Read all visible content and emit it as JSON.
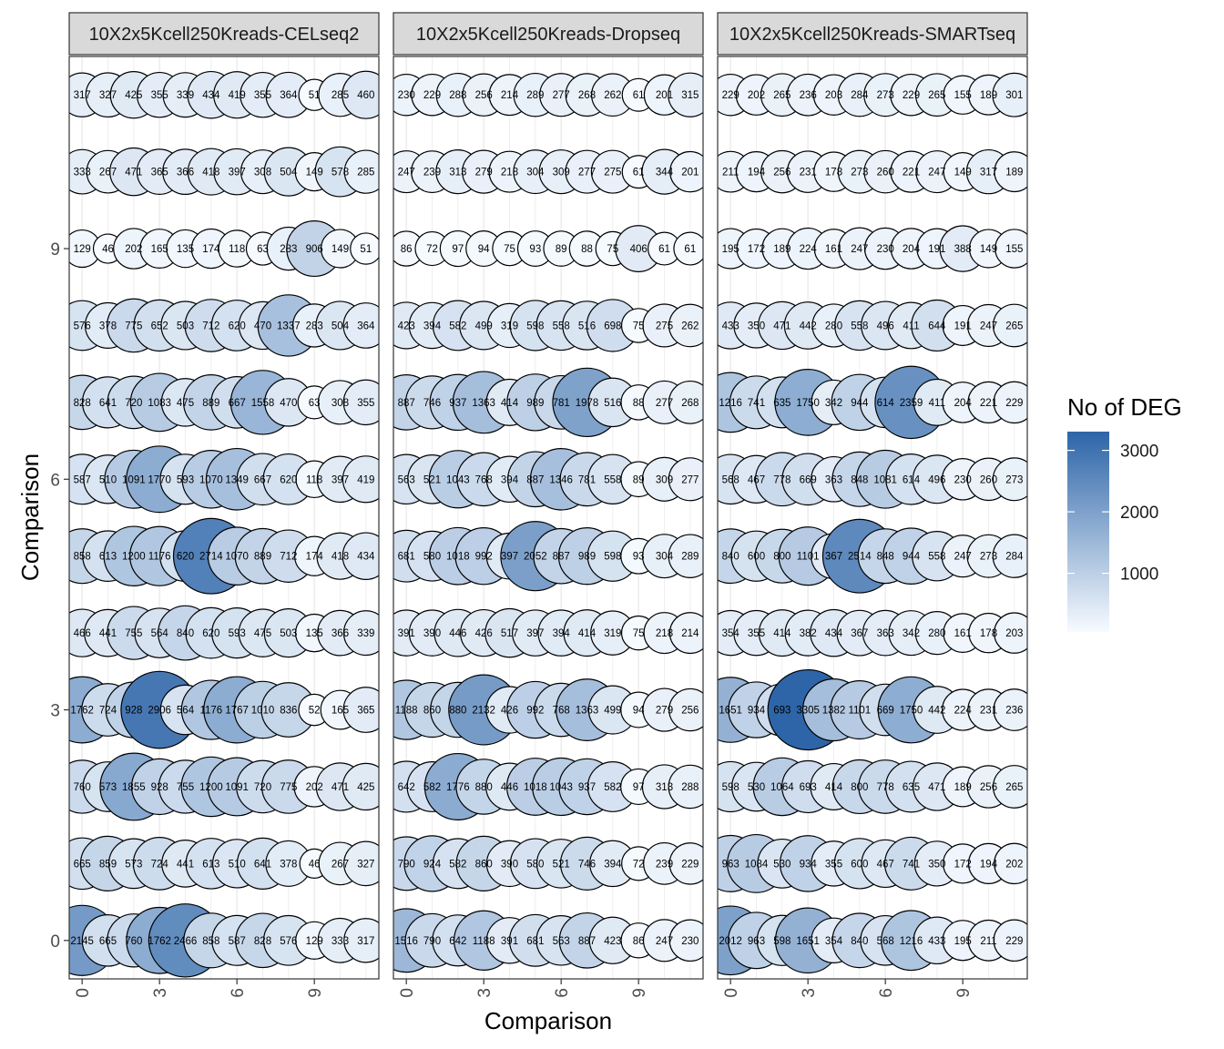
{
  "chart_data": {
    "type": "scatter",
    "subtype": "bubble",
    "xlabel": "Comparison",
    "ylabel": "Comparison",
    "x_ticks": [
      "0",
      "3",
      "6",
      "9"
    ],
    "y_ticks": [
      "0",
      "3",
      "6",
      "9"
    ],
    "x_categories": [
      0,
      1,
      2,
      3,
      4,
      5,
      6,
      7,
      8,
      9,
      10,
      11
    ],
    "y_categories": [
      0,
      1,
      2,
      3,
      4,
      5,
      6,
      7,
      8,
      9,
      10,
      11
    ],
    "xlim": [
      -0.5,
      11.5
    ],
    "ylim": [
      -0.5,
      11.5
    ],
    "grid": true,
    "legend": {
      "title": "No of DEG",
      "placement": "right",
      "ticks": [
        "1000",
        "2000",
        "3000"
      ],
      "tick_values": [
        1000,
        2000,
        3000
      ],
      "range": [
        46,
        3305
      ],
      "color_low": "#f7fbff",
      "color_high": "#2d65a8"
    },
    "panels": [
      {
        "name": "10X2x5Kcell250Kreads-CELseq2",
        "rows": [
          [
            "2145",
            "665",
            "760",
            "1762",
            "2466",
            "858",
            "587",
            "828",
            "576",
            "129",
            "333",
            "317"
          ],
          [
            "665",
            "859",
            "573",
            "724",
            "441",
            "613",
            "510",
            "641",
            "378",
            "46",
            "267",
            "327"
          ],
          [
            "760",
            "573",
            "1855",
            "928",
            "755",
            "1200",
            "1091",
            "720",
            "775",
            "202",
            "471",
            "425"
          ],
          [
            "1762",
            "724",
            "928",
            "2906",
            "564",
            "1176",
            "1767",
            "1010",
            "836",
            "52",
            "165",
            "365"
          ],
          [
            "466",
            "441",
            "755",
            "564",
            "840",
            "620",
            "593",
            "475",
            "503",
            "135",
            "366",
            "339"
          ],
          [
            "858",
            "613",
            "1200",
            "1176",
            "620",
            "2714",
            "1070",
            "889",
            "712",
            "174",
            "418",
            "434"
          ],
          [
            "587",
            "510",
            "1091",
            "1770",
            "593",
            "1070",
            "1349",
            "667",
            "620",
            "118",
            "397",
            "419"
          ],
          [
            "828",
            "641",
            "720",
            "1083",
            "475",
            "889",
            "667",
            "1558",
            "470",
            "63",
            "308",
            "355"
          ],
          [
            "576",
            "378",
            "775",
            "652",
            "503",
            "712",
            "620",
            "470",
            "1337",
            "283",
            "504",
            "364"
          ],
          [
            "129",
            "46",
            "202",
            "165",
            "135",
            "174",
            "118",
            "63",
            "283",
            "906",
            "149",
            "51"
          ],
          [
            "333",
            "267",
            "471",
            "365",
            "366",
            "418",
            "397",
            "308",
            "504",
            "149",
            "578",
            "285"
          ],
          [
            "317",
            "327",
            "425",
            "355",
            "339",
            "434",
            "419",
            "355",
            "364",
            "51",
            "285",
            "460"
          ]
        ]
      },
      {
        "name": "10X2x5Kcell250Kreads-Dropseq",
        "rows": [
          [
            "1516",
            "790",
            "642",
            "1188",
            "391",
            "681",
            "563",
            "887",
            "423",
            "86",
            "247",
            "230"
          ],
          [
            "790",
            "924",
            "582",
            "860",
            "390",
            "580",
            "521",
            "746",
            "394",
            "72",
            "239",
            "229"
          ],
          [
            "642",
            "582",
            "1776",
            "880",
            "446",
            "1018",
            "1043",
            "937",
            "582",
            "97",
            "313",
            "288"
          ],
          [
            "1188",
            "860",
            "880",
            "2132",
            "426",
            "992",
            "768",
            "1363",
            "499",
            "94",
            "279",
            "256"
          ],
          [
            "391",
            "390",
            "446",
            "426",
            "517",
            "397",
            "394",
            "414",
            "319",
            "75",
            "218",
            "214"
          ],
          [
            "681",
            "580",
            "1018",
            "992",
            "397",
            "2052",
            "887",
            "989",
            "598",
            "93",
            "304",
            "289"
          ],
          [
            "563",
            "521",
            "1043",
            "768",
            "394",
            "887",
            "1346",
            "781",
            "558",
            "89",
            "309",
            "277"
          ],
          [
            "887",
            "746",
            "937",
            "1363",
            "414",
            "989",
            "781",
            "1978",
            "516",
            "88",
            "277",
            "268"
          ],
          [
            "423",
            "394",
            "582",
            "499",
            "319",
            "598",
            "558",
            "516",
            "698",
            "75",
            "275",
            "262"
          ],
          [
            "86",
            "72",
            "97",
            "94",
            "75",
            "93",
            "89",
            "88",
            "75",
            "406",
            "61",
            "61"
          ],
          [
            "247",
            "239",
            "313",
            "279",
            "218",
            "304",
            "309",
            "277",
            "275",
            "61",
            "344",
            "201"
          ],
          [
            "230",
            "229",
            "288",
            "256",
            "214",
            "289",
            "277",
            "268",
            "262",
            "61",
            "201",
            "315"
          ]
        ]
      },
      {
        "name": "10X2x5Kcell250Kreads-SMARTseq",
        "rows": [
          [
            "2012",
            "963",
            "598",
            "1651",
            "354",
            "840",
            "568",
            "1216",
            "433",
            "195",
            "211",
            "229"
          ],
          [
            "963",
            "1084",
            "530",
            "934",
            "355",
            "600",
            "467",
            "741",
            "350",
            "172",
            "194",
            "202"
          ],
          [
            "598",
            "530",
            "1064",
            "693",
            "414",
            "800",
            "778",
            "635",
            "471",
            "189",
            "256",
            "265"
          ],
          [
            "1651",
            "934",
            "693",
            "3305",
            "1382",
            "1101",
            "669",
            "1750",
            "442",
            "224",
            "231",
            "236"
          ],
          [
            "354",
            "355",
            "414",
            "382",
            "434",
            "367",
            "363",
            "342",
            "280",
            "161",
            "178",
            "203"
          ],
          [
            "840",
            "600",
            "800",
            "1101",
            "367",
            "2514",
            "848",
            "944",
            "558",
            "247",
            "273",
            "284"
          ],
          [
            "568",
            "467",
            "778",
            "669",
            "363",
            "848",
            "1081",
            "614",
            "496",
            "230",
            "260",
            "273"
          ],
          [
            "1216",
            "741",
            "635",
            "1750",
            "342",
            "944",
            "614",
            "2359",
            "411",
            "204",
            "221",
            "229"
          ],
          [
            "433",
            "350",
            "471",
            "442",
            "280",
            "558",
            "496",
            "411",
            "644",
            "191",
            "247",
            "265"
          ],
          [
            "195",
            "172",
            "189",
            "224",
            "161",
            "247",
            "230",
            "204",
            "191",
            "388",
            "149",
            "155"
          ],
          [
            "211",
            "194",
            "256",
            "231",
            "178",
            "273",
            "260",
            "221",
            "247",
            "149",
            "317",
            "189"
          ],
          [
            "229",
            "202",
            "265",
            "236",
            "203",
            "284",
            "273",
            "229",
            "265",
            "155",
            "189",
            "301"
          ]
        ]
      }
    ]
  }
}
